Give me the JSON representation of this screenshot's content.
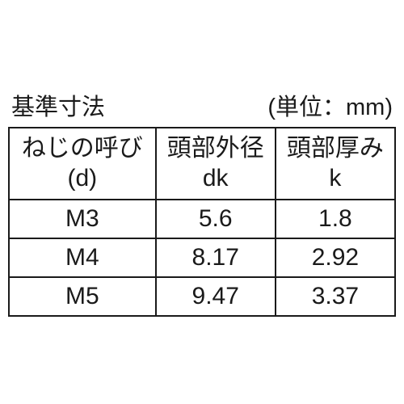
{
  "title": "基準寸法",
  "unit_label": "(単位：mm)",
  "table": {
    "type": "table",
    "columns": [
      {
        "header_line1": "ねじの呼び",
        "header_line2": "(d)",
        "width_pct": 38,
        "align": "center"
      },
      {
        "header_line1": "頭部外径",
        "header_line2": "dk",
        "width_pct": 31,
        "align": "center"
      },
      {
        "header_line1": "頭部厚み",
        "header_line2": "k",
        "width_pct": 31,
        "align": "center"
      }
    ],
    "rows": [
      [
        "M3",
        "5.6",
        "1.8"
      ],
      [
        "M4",
        "8.17",
        "2.92"
      ],
      [
        "M5",
        "9.47",
        "3.37"
      ]
    ],
    "border_color": "#1a1a1a",
    "text_color": "#1a1a1a",
    "background_color": "#ffffff",
    "font_size_pt": 22,
    "header_font_size_pt": 22
  }
}
